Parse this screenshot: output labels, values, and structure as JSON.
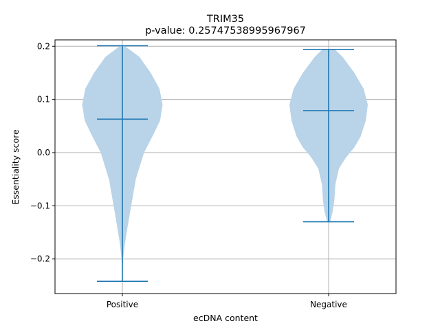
{
  "chart_data": {
    "type": "violin",
    "title": "TRIM35",
    "subtitle": "p-value: 0.25747538995967967",
    "xlabel": "ecDNA content",
    "ylabel": "Essentiality score",
    "categories": [
      "Positive",
      "Negative"
    ],
    "ylim": [
      -0.265,
      0.212
    ],
    "yticks": [
      -0.2,
      -0.1,
      0.0,
      0.1,
      0.2
    ],
    "ytick_labels": [
      "−0.2",
      "−0.1",
      "0.0",
      "0.1",
      "0.2"
    ],
    "grid": true,
    "colors": {
      "violin_fill": "#b9d3e8",
      "line": "#1f77b4",
      "grid": "#b0b0b0"
    },
    "series": [
      {
        "category": "Positive",
        "max": 0.201,
        "median": 0.063,
        "min": -0.242,
        "density_half_width": [
          [
            -0.242,
            0.0
          ],
          [
            -0.22,
            0.005
          ],
          [
            -0.2,
            0.015
          ],
          [
            -0.17,
            0.05
          ],
          [
            -0.14,
            0.1
          ],
          [
            -0.1,
            0.17
          ],
          [
            -0.05,
            0.26
          ],
          [
            0.0,
            0.42
          ],
          [
            0.03,
            0.58
          ],
          [
            0.06,
            0.73
          ],
          [
            0.09,
            0.78
          ],
          [
            0.12,
            0.72
          ],
          [
            0.15,
            0.55
          ],
          [
            0.18,
            0.33
          ],
          [
            0.201,
            0.04
          ]
        ]
      },
      {
        "category": "Negative",
        "max": 0.194,
        "median": 0.079,
        "min": -0.13,
        "density_half_width": [
          [
            -0.13,
            0.03
          ],
          [
            -0.11,
            0.08
          ],
          [
            -0.09,
            0.11
          ],
          [
            -0.06,
            0.13
          ],
          [
            -0.03,
            0.2
          ],
          [
            -0.01,
            0.33
          ],
          [
            0.01,
            0.5
          ],
          [
            0.03,
            0.62
          ],
          [
            0.06,
            0.72
          ],
          [
            0.09,
            0.76
          ],
          [
            0.12,
            0.68
          ],
          [
            0.15,
            0.5
          ],
          [
            0.18,
            0.27
          ],
          [
            0.194,
            0.12
          ]
        ]
      }
    ]
  }
}
